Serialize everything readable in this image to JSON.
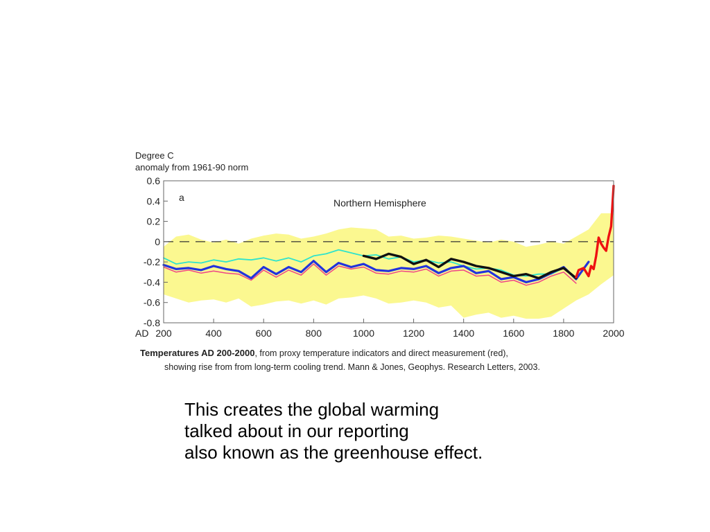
{
  "chart_data": {
    "type": "line",
    "ylabel_line1": "Degree C",
    "ylabel_line2": "anomaly from 1961-90 norm",
    "panel_letter": "a",
    "panel_title": "Northern Hemisphere",
    "xlim": [
      200,
      2000
    ],
    "ylim": [
      -0.8,
      0.6
    ],
    "x_ticks": [
      200,
      400,
      600,
      800,
      1000,
      1200,
      1400,
      1600,
      1800,
      2000
    ],
    "x_tick_labels": [
      "200",
      "400",
      "600",
      "800",
      "1000",
      "1200",
      "1400",
      "1600",
      "1800",
      "2000"
    ],
    "x_axis_prefix": "AD",
    "y_ticks": [
      0.6,
      0.4,
      0.2,
      0,
      -0.2,
      -0.4,
      -0.6,
      -0.8
    ],
    "y_tick_labels": [
      "0.6",
      "0.4",
      "0.2",
      "0",
      "-0.2",
      "-0.4",
      "-0.6",
      "-0.8"
    ],
    "reference_line_y": 0,
    "uncertainty_band": {
      "color": "#fbf890",
      "x": [
        200,
        250,
        300,
        350,
        400,
        450,
        500,
        550,
        600,
        650,
        700,
        750,
        800,
        850,
        900,
        950,
        1000,
        1050,
        1100,
        1150,
        1200,
        1250,
        1300,
        1350,
        1400,
        1450,
        1500,
        1550,
        1600,
        1650,
        1700,
        1750,
        1800,
        1850,
        1900,
        1950,
        2000
      ],
      "upper": [
        -0.05,
        0.05,
        0.07,
        0.02,
        -0.01,
        0.02,
        -0.02,
        0.03,
        0.06,
        0.08,
        0.07,
        0.03,
        0.05,
        0.08,
        0.12,
        0.14,
        0.13,
        0.12,
        0.05,
        0.06,
        0.03,
        0.04,
        0.06,
        0.05,
        0.03,
        0.01,
        -0.01,
        0.02,
        0.0,
        -0.05,
        -0.03,
        0.0,
        -0.02,
        0.05,
        0.12,
        0.28,
        0.28
      ],
      "lower": [
        -0.52,
        -0.56,
        -0.6,
        -0.58,
        -0.57,
        -0.6,
        -0.56,
        -0.64,
        -0.62,
        -0.59,
        -0.58,
        -0.61,
        -0.58,
        -0.62,
        -0.56,
        -0.55,
        -0.53,
        -0.56,
        -0.61,
        -0.6,
        -0.58,
        -0.6,
        -0.65,
        -0.63,
        -0.75,
        -0.72,
        -0.7,
        -0.75,
        -0.73,
        -0.76,
        -0.76,
        -0.74,
        -0.66,
        -0.58,
        -0.52,
        -0.42,
        -0.33
      ]
    },
    "series": [
      {
        "color": "#2ee3cc",
        "width": 1.8,
        "x": [
          200,
          250,
          300,
          350,
          400,
          450,
          500,
          550,
          600,
          650,
          700,
          750,
          800,
          850,
          900,
          950,
          1000,
          1050,
          1100,
          1150,
          1200,
          1250,
          1300,
          1350,
          1400,
          1450,
          1500,
          1550,
          1600,
          1650,
          1700,
          1750,
          1800,
          1850
        ],
        "y": [
          -0.16,
          -0.22,
          -0.2,
          -0.21,
          -0.18,
          -0.2,
          -0.17,
          -0.18,
          -0.16,
          -0.19,
          -0.16,
          -0.2,
          -0.14,
          -0.12,
          -0.08,
          -0.11,
          -0.14,
          -0.13,
          -0.17,
          -0.15,
          -0.2,
          -0.18,
          -0.21,
          -0.2,
          -0.24,
          -0.27,
          -0.26,
          -0.28,
          -0.33,
          -0.34,
          -0.32,
          -0.32,
          -0.26,
          -0.36
        ]
      },
      {
        "color": "#ee4488",
        "width": 1.5,
        "x": [
          200,
          250,
          300,
          350,
          400,
          450,
          500,
          550,
          600,
          650,
          700,
          750,
          800,
          850,
          900,
          950,
          1000,
          1050,
          1100,
          1150,
          1200,
          1250,
          1300,
          1350,
          1400,
          1450,
          1500,
          1550,
          1600,
          1650,
          1700,
          1750,
          1800,
          1850
        ],
        "y": [
          -0.25,
          -0.3,
          -0.28,
          -0.31,
          -0.29,
          -0.31,
          -0.32,
          -0.38,
          -0.28,
          -0.35,
          -0.28,
          -0.33,
          -0.22,
          -0.33,
          -0.24,
          -0.27,
          -0.25,
          -0.31,
          -0.32,
          -0.29,
          -0.3,
          -0.27,
          -0.34,
          -0.29,
          -0.28,
          -0.34,
          -0.33,
          -0.4,
          -0.38,
          -0.43,
          -0.4,
          -0.34,
          -0.3,
          -0.41
        ]
      },
      {
        "color": "#2233dd",
        "width": 3.2,
        "x": [
          200,
          250,
          300,
          350,
          400,
          450,
          500,
          550,
          600,
          650,
          700,
          750,
          800,
          850,
          900,
          950,
          1000,
          1050,
          1100,
          1150,
          1200,
          1250,
          1300,
          1350,
          1400,
          1450,
          1500,
          1550,
          1600,
          1650,
          1700,
          1750,
          1800,
          1850,
          1900
        ],
        "y": [
          -0.23,
          -0.27,
          -0.26,
          -0.28,
          -0.24,
          -0.27,
          -0.29,
          -0.36,
          -0.25,
          -0.32,
          -0.25,
          -0.3,
          -0.19,
          -0.3,
          -0.21,
          -0.25,
          -0.22,
          -0.28,
          -0.29,
          -0.26,
          -0.27,
          -0.24,
          -0.31,
          -0.26,
          -0.24,
          -0.31,
          -0.29,
          -0.37,
          -0.35,
          -0.4,
          -0.37,
          -0.31,
          -0.25,
          -0.37,
          -0.2
        ]
      },
      {
        "color": "#111111",
        "width": 3.4,
        "x": [
          1000,
          1050,
          1100,
          1150,
          1200,
          1250,
          1300,
          1350,
          1400,
          1450,
          1500,
          1550,
          1600,
          1650,
          1700,
          1750,
          1800,
          1850
        ],
        "y": [
          -0.14,
          -0.17,
          -0.12,
          -0.15,
          -0.22,
          -0.18,
          -0.25,
          -0.17,
          -0.2,
          -0.24,
          -0.26,
          -0.3,
          -0.34,
          -0.32,
          -0.36,
          -0.3,
          -0.26,
          -0.36
        ]
      },
      {
        "color": "#ee1111",
        "width": 3.4,
        "x": [
          1850,
          1860,
          1880,
          1900,
          1910,
          1920,
          1930,
          1940,
          1950,
          1960,
          1970,
          1980,
          1990,
          1995,
          2000
        ],
        "y": [
          -0.35,
          -0.28,
          -0.26,
          -0.34,
          -0.24,
          -0.27,
          -0.14,
          0.04,
          -0.02,
          -0.06,
          -0.09,
          0.05,
          0.15,
          0.35,
          0.55
        ]
      }
    ],
    "caption_bold": "Temperatures AD 200-2000",
    "caption_line1": ", from proxy temperature indicators and direct measurement (red),",
    "caption_line2": "showing rise from from long-term cooling trend.  Mann & Jones, Geophys. Research Letters, 2003."
  },
  "body_text": {
    "line1": "This creates the global warming",
    "line2": "talked about in our reporting",
    "line3": "also known as the greenhouse effect."
  }
}
